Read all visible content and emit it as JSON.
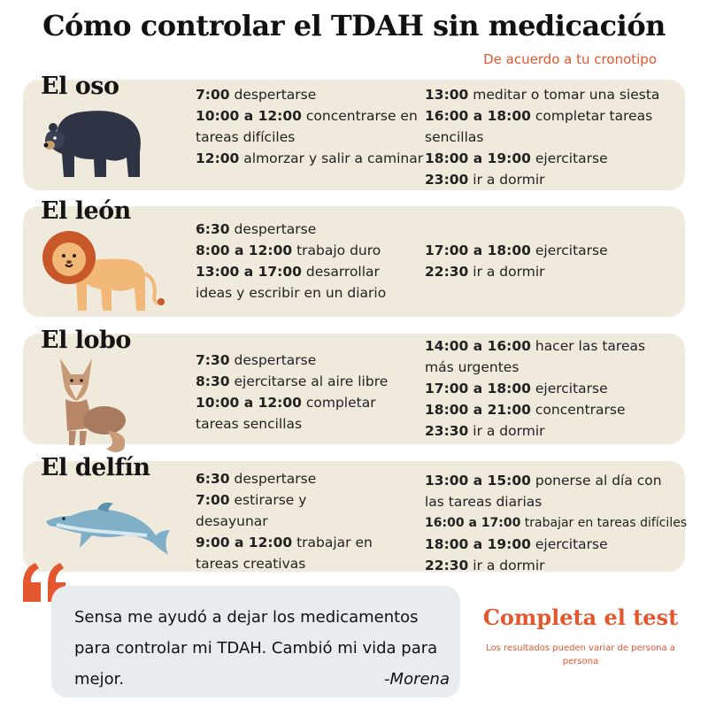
{
  "header": {
    "title": "Cómo controlar el TDAH sin medicación",
    "subtitle": "De acuerdo a tu cronotipo"
  },
  "colors": {
    "accent": "#e4572e",
    "card": "#efeadb",
    "quote_bg": "#e9ecef"
  },
  "chronotypes": [
    {
      "name": "El oso",
      "icon": "bear-icon",
      "col1": [
        {
          "time": "7:00",
          "text": " despertarse"
        },
        {
          "time": "10:00 a 12:00",
          "text": " concentrarse en tareas difíciles"
        },
        {
          "time": "12:00",
          "text": " almorzar y salir a caminar"
        }
      ],
      "col2": [
        {
          "time": "13:00",
          "text": " meditar o tomar una siesta"
        },
        {
          "time": "16:00 a 18:00",
          "text": " completar tareas sencillas"
        },
        {
          "time": "18:00 a 19:00",
          "text": " ejercitarse"
        },
        {
          "time": "23:00",
          "text": " ir a dormir"
        }
      ]
    },
    {
      "name": "El león",
      "icon": "lion-icon",
      "col1": [
        {
          "time": "6:30",
          "text": " despertarse"
        },
        {
          "time": "8:00 a 12:00",
          "text": " trabajo duro"
        },
        {
          "time": "13:00 a 17:00",
          "text": " desarrollar ideas y escribir en un diario"
        }
      ],
      "col2": [
        {
          "time": "17:00 a 18:00",
          "text": " ejercitarse"
        },
        {
          "time": "22:30",
          "text": " ir a dormir"
        }
      ]
    },
    {
      "name": "El lobo",
      "icon": "wolf-icon",
      "col1": [
        {
          "time": "7:30",
          "text": " despertarse"
        },
        {
          "time": "8:30",
          "text": " ejercitarse al aire libre"
        },
        {
          "time": "10:00 a 12:00",
          "text": " completar tareas sencillas"
        }
      ],
      "col2": [
        {
          "time": "14:00 a 16:00",
          "text": " hacer las tareas más urgentes"
        },
        {
          "time": "17:00 a 18:00",
          "text": " ejercitarse"
        },
        {
          "time": "18:00 a 21:00",
          "text": " concentrarse"
        },
        {
          "time": "23:30",
          "text": " ir a dormir"
        }
      ]
    },
    {
      "name": "El delfín",
      "icon": "dolphin-icon",
      "col1": [
        {
          "time": "6:30",
          "text": " despertarse"
        },
        {
          "time": "7:00",
          "text": " estirarse y desayunar"
        },
        {
          "time": "9:00 a 12:00",
          "text": " trabajar en tareas creativas"
        }
      ],
      "col2": [
        {
          "time": "13:00 a 15:00",
          "text": " ponerse al día con las tareas diarias"
        },
        {
          "time": "16:00 a 17:00",
          "text": " trabajar en tareas difíciles"
        },
        {
          "time": "18:00 a 19:00",
          "text": " ejercitarse"
        },
        {
          "time": "22:30",
          "text": " ir a dormir"
        }
      ]
    }
  ],
  "quote": {
    "text": "Sensa me ayudó a dejar los medicamentos para controlar mi TDAH. Cambió mi vida para mejor.",
    "author": "-Morena",
    "icon": "quote-icon"
  },
  "cta": {
    "label": "Completa el test",
    "disclaimer": "Los resultados pueden variar de persona a persona"
  }
}
